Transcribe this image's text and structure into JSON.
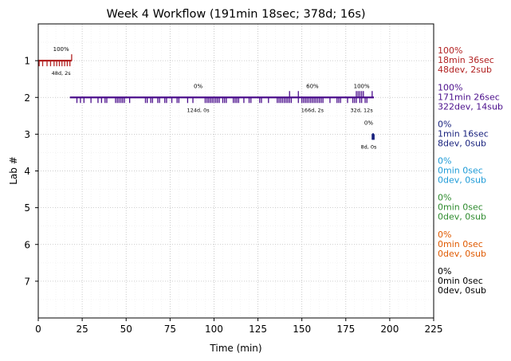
{
  "chart_data": {
    "type": "timeline",
    "title": "Week 4 Workflow (191min 18sec; 378d; 16s)",
    "xlabel": "Time (min)",
    "ylabel": "Lab #",
    "xlim": [
      0,
      225
    ],
    "ylim": [
      8,
      0
    ],
    "xticks": [
      0,
      25,
      50,
      75,
      100,
      125,
      150,
      175,
      200,
      225
    ],
    "yticks": [
      1,
      2,
      3,
      4,
      5,
      6,
      7
    ],
    "grid": true,
    "labs": [
      {
        "lab": 1,
        "color": "#b22222",
        "start": 0,
        "end": 19,
        "summary": [
          "100%",
          "18min 36sec",
          "48dev, 2sub"
        ],
        "devs": [
          0.5,
          2.5,
          5,
          7,
          9,
          10.5,
          12,
          13.5,
          15,
          16.5,
          18
        ],
        "subs": [
          19
        ],
        "annotations": [
          {
            "x": 13,
            "pct": "100%",
            "stat": "48d, 2s"
          }
        ]
      },
      {
        "lab": 2,
        "color": "#4b0f8c",
        "start": 18,
        "end": 191,
        "summary": [
          "100%",
          "171min 26sec",
          "322dev, 14sub"
        ],
        "devs": [
          22,
          24,
          26,
          30,
          34,
          36,
          38,
          39,
          44,
          45,
          46,
          47,
          48,
          49,
          52,
          61,
          62,
          64,
          65,
          68,
          69,
          72,
          73,
          76,
          79,
          80,
          85,
          88,
          95,
          96,
          97,
          98,
          99,
          100,
          101,
          102,
          103,
          105,
          106,
          107,
          111,
          112,
          113,
          114,
          117,
          120,
          121,
          126,
          127,
          131,
          136,
          137,
          138,
          139,
          140,
          141,
          142,
          143,
          144,
          148,
          150,
          151,
          152,
          153,
          154,
          155,
          156,
          157,
          158,
          159,
          160,
          161,
          162,
          166,
          170,
          171,
          172,
          176,
          179,
          180,
          181,
          183,
          184,
          186,
          187
        ],
        "subs": [
          143,
          148,
          181,
          182,
          183,
          184,
          185,
          190
        ],
        "annotations": [
          {
            "x": 91,
            "pct": "0%",
            "stat": "124d, 0s"
          },
          {
            "x": 156,
            "pct": "60%",
            "stat": "166d, 2s"
          },
          {
            "x": 184,
            "pct": "100%",
            "stat": "32d, 12s"
          }
        ]
      },
      {
        "lab": 3,
        "color": "#1a237e",
        "start": 190,
        "end": 191,
        "summary": [
          "0%",
          "1min 16sec",
          "8dev, 0sub"
        ],
        "devs": [
          190,
          190.3,
          190.6,
          190.9,
          191.1
        ],
        "subs": [],
        "annotations": [
          {
            "x": 188,
            "pct": "0%",
            "stat": "8d, 0s"
          }
        ]
      },
      {
        "lab": 4,
        "color": "#1e9bd7",
        "summary": [
          "0%",
          "0min 0sec",
          "0dev, 0sub"
        ],
        "devs": [],
        "subs": [],
        "annotations": []
      },
      {
        "lab": 5,
        "color": "#2e8b2e",
        "summary": [
          "0%",
          "0min 0sec",
          "0dev, 0sub"
        ],
        "devs": [],
        "subs": [],
        "annotations": []
      },
      {
        "lab": 6,
        "color": "#e05a00",
        "summary": [
          "0%",
          "0min 0sec",
          "0dev, 0sub"
        ],
        "devs": [],
        "subs": [],
        "annotations": []
      },
      {
        "lab": 7,
        "color": "#000000",
        "summary": [
          "0%",
          "0min 0sec",
          "0dev, 0sub"
        ],
        "devs": [],
        "subs": [],
        "annotations": []
      }
    ]
  }
}
